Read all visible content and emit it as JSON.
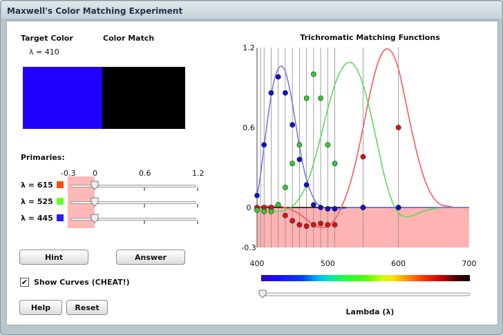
{
  "window": {
    "title": "Maxwell's Color Matching Experiment"
  },
  "target": {
    "label": "Target Color",
    "lambda_text": "λ = 410",
    "color": "#2200ff"
  },
  "match": {
    "label": "Color Match",
    "color": "#000000"
  },
  "primaries": {
    "label": "Primaries:",
    "scale_ticks": [
      "-0.3",
      "0",
      "0.6",
      "1.2"
    ],
    "items": [
      {
        "label": "λ = 615",
        "color": "#ff4c00",
        "value": 0
      },
      {
        "label": "λ = 525",
        "color": "#66ff22",
        "value": 0
      },
      {
        "label": "λ = 445",
        "color": "#2a1aff",
        "value": 0
      }
    ]
  },
  "buttons": {
    "hint": "Hint",
    "answer": "Answer",
    "help": "Help",
    "reset": "Reset"
  },
  "show_curves": {
    "label": "Show Curves (CHEAT!)",
    "checked": true
  },
  "chart_data": {
    "type": "line",
    "title": "Trichromatic Matching Functions",
    "xlabel": "Lambda (λ)",
    "ylabel": "",
    "xlim": [
      400,
      700
    ],
    "ylim": [
      -0.3,
      1.2
    ],
    "x_ticks": [
      "400",
      "500",
      "600",
      "700"
    ],
    "y_ticks": [
      "-0.3",
      "0",
      "0.6",
      "1.2"
    ],
    "negative_region_color": "#ffb3b3",
    "series": [
      {
        "color": "#ff5555",
        "x": [
          400,
          410,
          420,
          430,
          440,
          450,
          460,
          470,
          480,
          490,
          500,
          510,
          520,
          530,
          540,
          550,
          560,
          570,
          580,
          590,
          600,
          610,
          620,
          630,
          640,
          650,
          660,
          670,
          680,
          690,
          700
        ],
        "values": [
          0.0,
          0.01,
          0.01,
          0.01,
          0.0,
          -0.02,
          -0.05,
          -0.09,
          -0.13,
          -0.15,
          -0.14,
          -0.09,
          0.01,
          0.15,
          0.35,
          0.6,
          0.86,
          1.07,
          1.18,
          1.17,
          1.04,
          0.8,
          0.55,
          0.33,
          0.17,
          0.07,
          0.02,
          0.01,
          0.0,
          0.0,
          0.0
        ]
      },
      {
        "color": "#55dd55",
        "x": [
          400,
          410,
          420,
          430,
          440,
          450,
          460,
          470,
          480,
          490,
          500,
          510,
          520,
          530,
          540,
          550,
          560,
          570,
          580,
          590,
          600,
          610,
          620,
          630,
          640,
          650,
          660,
          670,
          680,
          690,
          700
        ],
        "values": [
          0.0,
          -0.01,
          -0.02,
          -0.03,
          -0.02,
          0.01,
          0.07,
          0.17,
          0.33,
          0.53,
          0.74,
          0.92,
          1.04,
          1.09,
          1.05,
          0.92,
          0.72,
          0.48,
          0.24,
          0.06,
          -0.04,
          -0.07,
          -0.06,
          -0.04,
          -0.02,
          -0.01,
          0.0,
          0.0,
          0.0,
          0.0,
          0.0
        ]
      },
      {
        "color": "#7777ee",
        "x": [
          400,
          405,
          410,
          415,
          420,
          425,
          430,
          435,
          440,
          445,
          450,
          455,
          460,
          465,
          470,
          475,
          480,
          485,
          490,
          495,
          500,
          510,
          520,
          530,
          540,
          550,
          560,
          580,
          600,
          650,
          700
        ],
        "values": [
          0.08,
          0.25,
          0.46,
          0.66,
          0.84,
          0.97,
          1.04,
          1.06,
          1.02,
          0.92,
          0.78,
          0.62,
          0.46,
          0.32,
          0.21,
          0.13,
          0.07,
          0.03,
          0.01,
          0.0,
          -0.01,
          -0.01,
          -0.01,
          0.0,
          0.0,
          0.0,
          0.0,
          0.0,
          0.0,
          0.0,
          0.0
        ]
      }
    ],
    "markers": {
      "red": {
        "color": "#dd1111",
        "x": [
          400,
          410,
          420,
          430,
          440,
          450,
          460,
          470,
          480,
          490,
          500,
          510,
          550,
          600
        ],
        "values": [
          0.0,
          0.0,
          0.0,
          0.02,
          -0.06,
          -0.1,
          -0.13,
          -0.14,
          -0.13,
          -0.12,
          -0.13,
          -0.13,
          0.38,
          0.6
        ]
      },
      "green": {
        "color": "#33cc33",
        "x": [
          400,
          410,
          420,
          430,
          440,
          450,
          460,
          470,
          480,
          490,
          500,
          510,
          550,
          600
        ],
        "values": [
          -0.02,
          -0.03,
          -0.03,
          0.02,
          0.15,
          0.33,
          0.47,
          0.82,
          1.0,
          0.82,
          0.47,
          0.33,
          0.0,
          0.0
        ]
      },
      "blue": {
        "color": "#1111cc",
        "x": [
          400,
          410,
          420,
          430,
          440,
          450,
          460,
          470,
          480,
          490,
          500,
          510,
          550,
          600
        ],
        "values": [
          0.09,
          0.47,
          0.86,
          0.98,
          0.86,
          0.62,
          0.36,
          0.17,
          0.02,
          0.0,
          -0.01,
          -0.01,
          0.0,
          0.0
        ]
      }
    },
    "gridlines_x": [
      405,
      410,
      420,
      430,
      440,
      450,
      460,
      470,
      480,
      490,
      500,
      510,
      550,
      600
    ],
    "lambda_slider_value": 400
  }
}
